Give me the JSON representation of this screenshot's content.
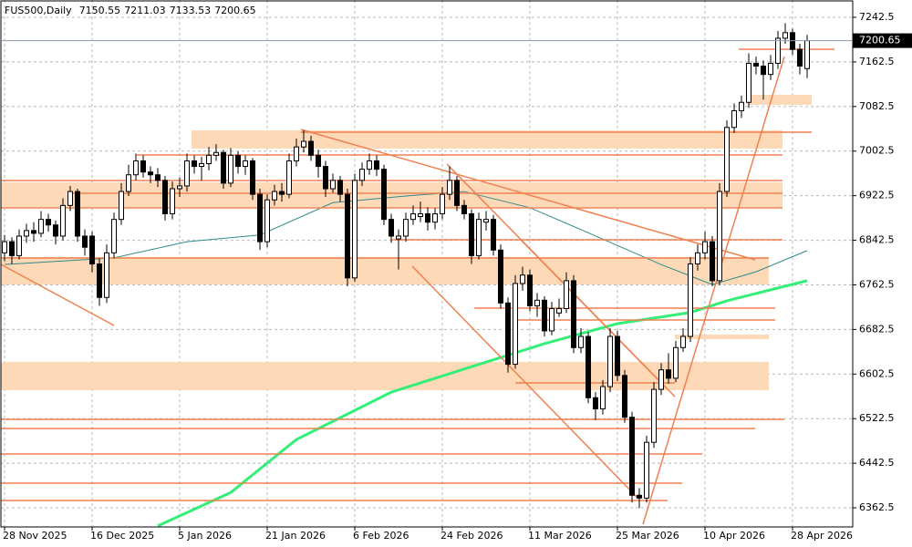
{
  "chart_data": {
    "type": "candlestick",
    "title": "FUS500,Daily",
    "categories": [
      "28 Nov 2025",
      null,
      null,
      null,
      null,
      null,
      null,
      null,
      null,
      null,
      null,
      null,
      "16 Dec 2025",
      null,
      null,
      null,
      null,
      null,
      null,
      null,
      null,
      null,
      null,
      null,
      "5 Jan 2026",
      null,
      null,
      null,
      null,
      null,
      null,
      null,
      null,
      null,
      null,
      null,
      "21 Jan 2026",
      null,
      null,
      null,
      null,
      null,
      null,
      null,
      null,
      null,
      null,
      null,
      "6 Feb 2026",
      null,
      null,
      null,
      null,
      null,
      null,
      null,
      null,
      null,
      null,
      null,
      "24 Feb 2026",
      null,
      null,
      null,
      null,
      null,
      null,
      null,
      null,
      null,
      null,
      null,
      "11 Mar 2026",
      null,
      null,
      null,
      null,
      null,
      null,
      null,
      null,
      null,
      null,
      null,
      "25 Mar 2026",
      null,
      null,
      null,
      null,
      null,
      null,
      null,
      null,
      null,
      null,
      null,
      "10 Apr 2026",
      null,
      null,
      null,
      null,
      null,
      null,
      null,
      null,
      null,
      null,
      null,
      "28 Apr 2026",
      null,
      null
    ],
    "open": [
      6820,
      6840,
      6815,
      6850,
      6860,
      6855,
      6880,
      6870,
      6850,
      6905,
      6930,
      6850,
      6850,
      6800,
      6740,
      6820,
      6880,
      6930,
      6960,
      6985,
      6965,
      6960,
      6950,
      6890,
      6935,
      6940,
      6985,
      6975,
      6980,
      6995,
      7000,
      6945,
      6995,
      6975,
      6985,
      6925,
      6840,
      6915,
      6930,
      6925,
      6985,
      7010,
      7020,
      6995,
      6975,
      6935,
      6950,
      6925,
      6775,
      6950,
      6970,
      6985,
      6970,
      6880,
      6845,
      6850,
      6880,
      6885,
      6890,
      6875,
      6890,
      6925,
      6950,
      6905,
      6890,
      6815,
      6875,
      6880,
      6825,
      6730,
      6620,
      6765,
      6780,
      6725,
      6735,
      6680,
      6712,
      6720,
      6770,
      6650,
      6670,
      6560,
      6540,
      6580,
      6670,
      6600,
      6525,
      6385,
      6380,
      6480,
      6575,
      6610,
      6595,
      6650,
      6670,
      6800,
      6820,
      6840,
      6770,
      6930,
      7045,
      7075,
      7090,
      7160,
      7155,
      7140,
      7160,
      7205,
      7215,
      7185,
      7150.55
    ],
    "high": [
      6852,
      6848,
      6862,
      6872,
      6875,
      6895,
      6890,
      6878,
      6918,
      6940,
      6935,
      6862,
      6858,
      6810,
      6835,
      6892,
      6945,
      6978,
      6998,
      6995,
      6975,
      6972,
      6958,
      6948,
      6955,
      6998,
      6995,
      6992,
      7010,
      7015,
      7005,
      7008,
      7002,
      6995,
      6990,
      6935,
      6925,
      6942,
      6945,
      6998,
      7025,
      7040,
      7030,
      7005,
      6985,
      6962,
      6958,
      6935,
      6962,
      6982,
      6998,
      6995,
      6978,
      6890,
      6862,
      6892,
      6905,
      6912,
      6902,
      6900,
      6938,
      6975,
      6958,
      6915,
      6898,
      6892,
      6895,
      6888,
      6835,
      6740,
      6780,
      6795,
      6790,
      6748,
      6742,
      6732,
      6738,
      6785,
      6780,
      6685,
      6678,
      6570,
      6592,
      6685,
      6680,
      6610,
      6535,
      6398,
      6492,
      6588,
      6622,
      6640,
      6662,
      6685,
      6812,
      6835,
      6858,
      6850,
      6945,
      7058,
      7088,
      7102,
      7178,
      7172,
      7165,
      7175,
      7218,
      7232,
      7222,
      7195,
      7211.03
    ],
    "low": [
      6805,
      6800,
      6808,
      6838,
      6840,
      6848,
      6858,
      6835,
      6842,
      6895,
      6840,
      6815,
      6785,
      6725,
      6730,
      6810,
      6870,
      6922,
      6950,
      6955,
      6945,
      6938,
      6878,
      6880,
      6920,
      6930,
      6962,
      6950,
      6968,
      6985,
      6935,
      6938,
      6962,
      6960,
      6915,
      6825,
      6830,
      6905,
      6912,
      6918,
      6975,
      7000,
      6985,
      6955,
      6920,
      6928,
      6912,
      6760,
      6768,
      6940,
      6960,
      6958,
      6870,
      6838,
      6790,
      6840,
      6870,
      6875,
      6860,
      6862,
      6880,
      6915,
      6895,
      6880,
      6800,
      6808,
      6860,
      6815,
      6720,
      6605,
      6612,
      6752,
      6715,
      6705,
      6670,
      6672,
      6705,
      6712,
      6640,
      6640,
      6550,
      6520,
      6530,
      6570,
      6590,
      6515,
      6372,
      6362,
      6372,
      6470,
      6565,
      6585,
      6588,
      6642,
      6660,
      6788,
      6808,
      6760,
      6762,
      6920,
      7035,
      7062,
      7080,
      7140,
      7095,
      7130,
      7150,
      7195,
      7175,
      7140,
      7133.53
    ],
    "close": [
      6840,
      6815,
      6850,
      6860,
      6855,
      6880,
      6870,
      6850,
      6905,
      6930,
      6850,
      6830,
      6800,
      6740,
      6820,
      6880,
      6930,
      6960,
      6985,
      6965,
      6960,
      6950,
      6890,
      6935,
      6940,
      6985,
      6975,
      6980,
      6995,
      7000,
      6945,
      6995,
      6975,
      6985,
      6925,
      6840,
      6915,
      6930,
      6925,
      6985,
      7010,
      7020,
      6995,
      6975,
      6935,
      6950,
      6925,
      6775,
      6950,
      6970,
      6985,
      6970,
      6880,
      6850,
      6850,
      6880,
      6890,
      6890,
      6875,
      6890,
      6925,
      6950,
      6905,
      6890,
      6815,
      6880,
      6880,
      6825,
      6730,
      6620,
      6765,
      6780,
      6725,
      6735,
      6680,
      6720,
      6720,
      6770,
      6650,
      6670,
      6560,
      6540,
      6580,
      6670,
      6600,
      6525,
      6385,
      6380,
      6480,
      6575,
      6610,
      6595,
      6650,
      6670,
      6800,
      6820,
      6840,
      6770,
      6930,
      7045,
      7075,
      7090,
      7160,
      7155,
      7140,
      7160,
      7205,
      7215,
      7185,
      7155,
      7200.65
    ],
    "color_up": "#ffffff",
    "color_down": "#000000",
    "overlays": [
      {
        "color": "#33ee77",
        "x": [
          21,
          31,
          40,
          53,
          66,
          74,
          84,
          94,
          99,
          110
        ],
        "values": [
          6330,
          6390,
          6485,
          6570,
          6624,
          6657,
          6693,
          6713,
          6734,
          6770
        ]
      },
      {
        "color": "#2e8b8b",
        "x": [
          0,
          15,
          25,
          35,
          45,
          55,
          63,
          72,
          80,
          90,
          97,
          103,
          110
        ],
        "values": [
          6799,
          6811,
          6840,
          6852,
          6910,
          6922,
          6930,
          6901,
          6856,
          6799,
          6763,
          6786,
          6824
        ]
      }
    ],
    "ylim": [
      6328.2,
      7273.6
    ],
    "yticks": [
      7242.5,
      7162.5,
      7082.5,
      7002.5,
      6922.5,
      6842.5,
      6762.5,
      6682.5,
      6602.5,
      6522.5,
      6442.5,
      6362.5
    ],
    "grid": true
  }
}
